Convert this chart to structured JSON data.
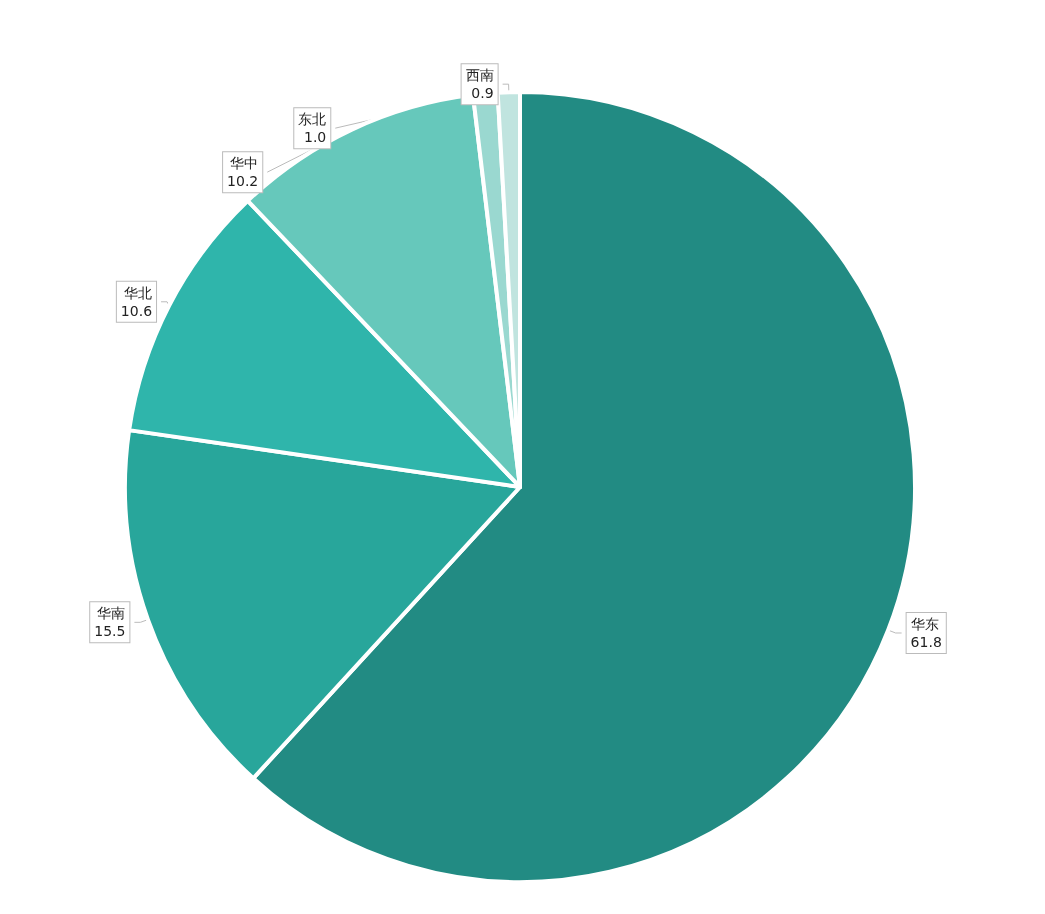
{
  "chart_data": {
    "type": "pie",
    "categories": [
      "华东",
      "华南",
      "华北",
      "华中",
      "东北",
      "西南"
    ],
    "values": [
      61.8,
      15.5,
      10.6,
      10.2,
      1.0,
      0.9
    ],
    "colors": [
      "#228b83",
      "#28a69b",
      "#2fb5ab",
      "#66c8bb",
      "#9ad8d0",
      "#c0e4df"
    ],
    "value_labels": [
      "61.8",
      "15.5",
      "10.6",
      "10.2",
      "1.0",
      "0.9"
    ]
  }
}
